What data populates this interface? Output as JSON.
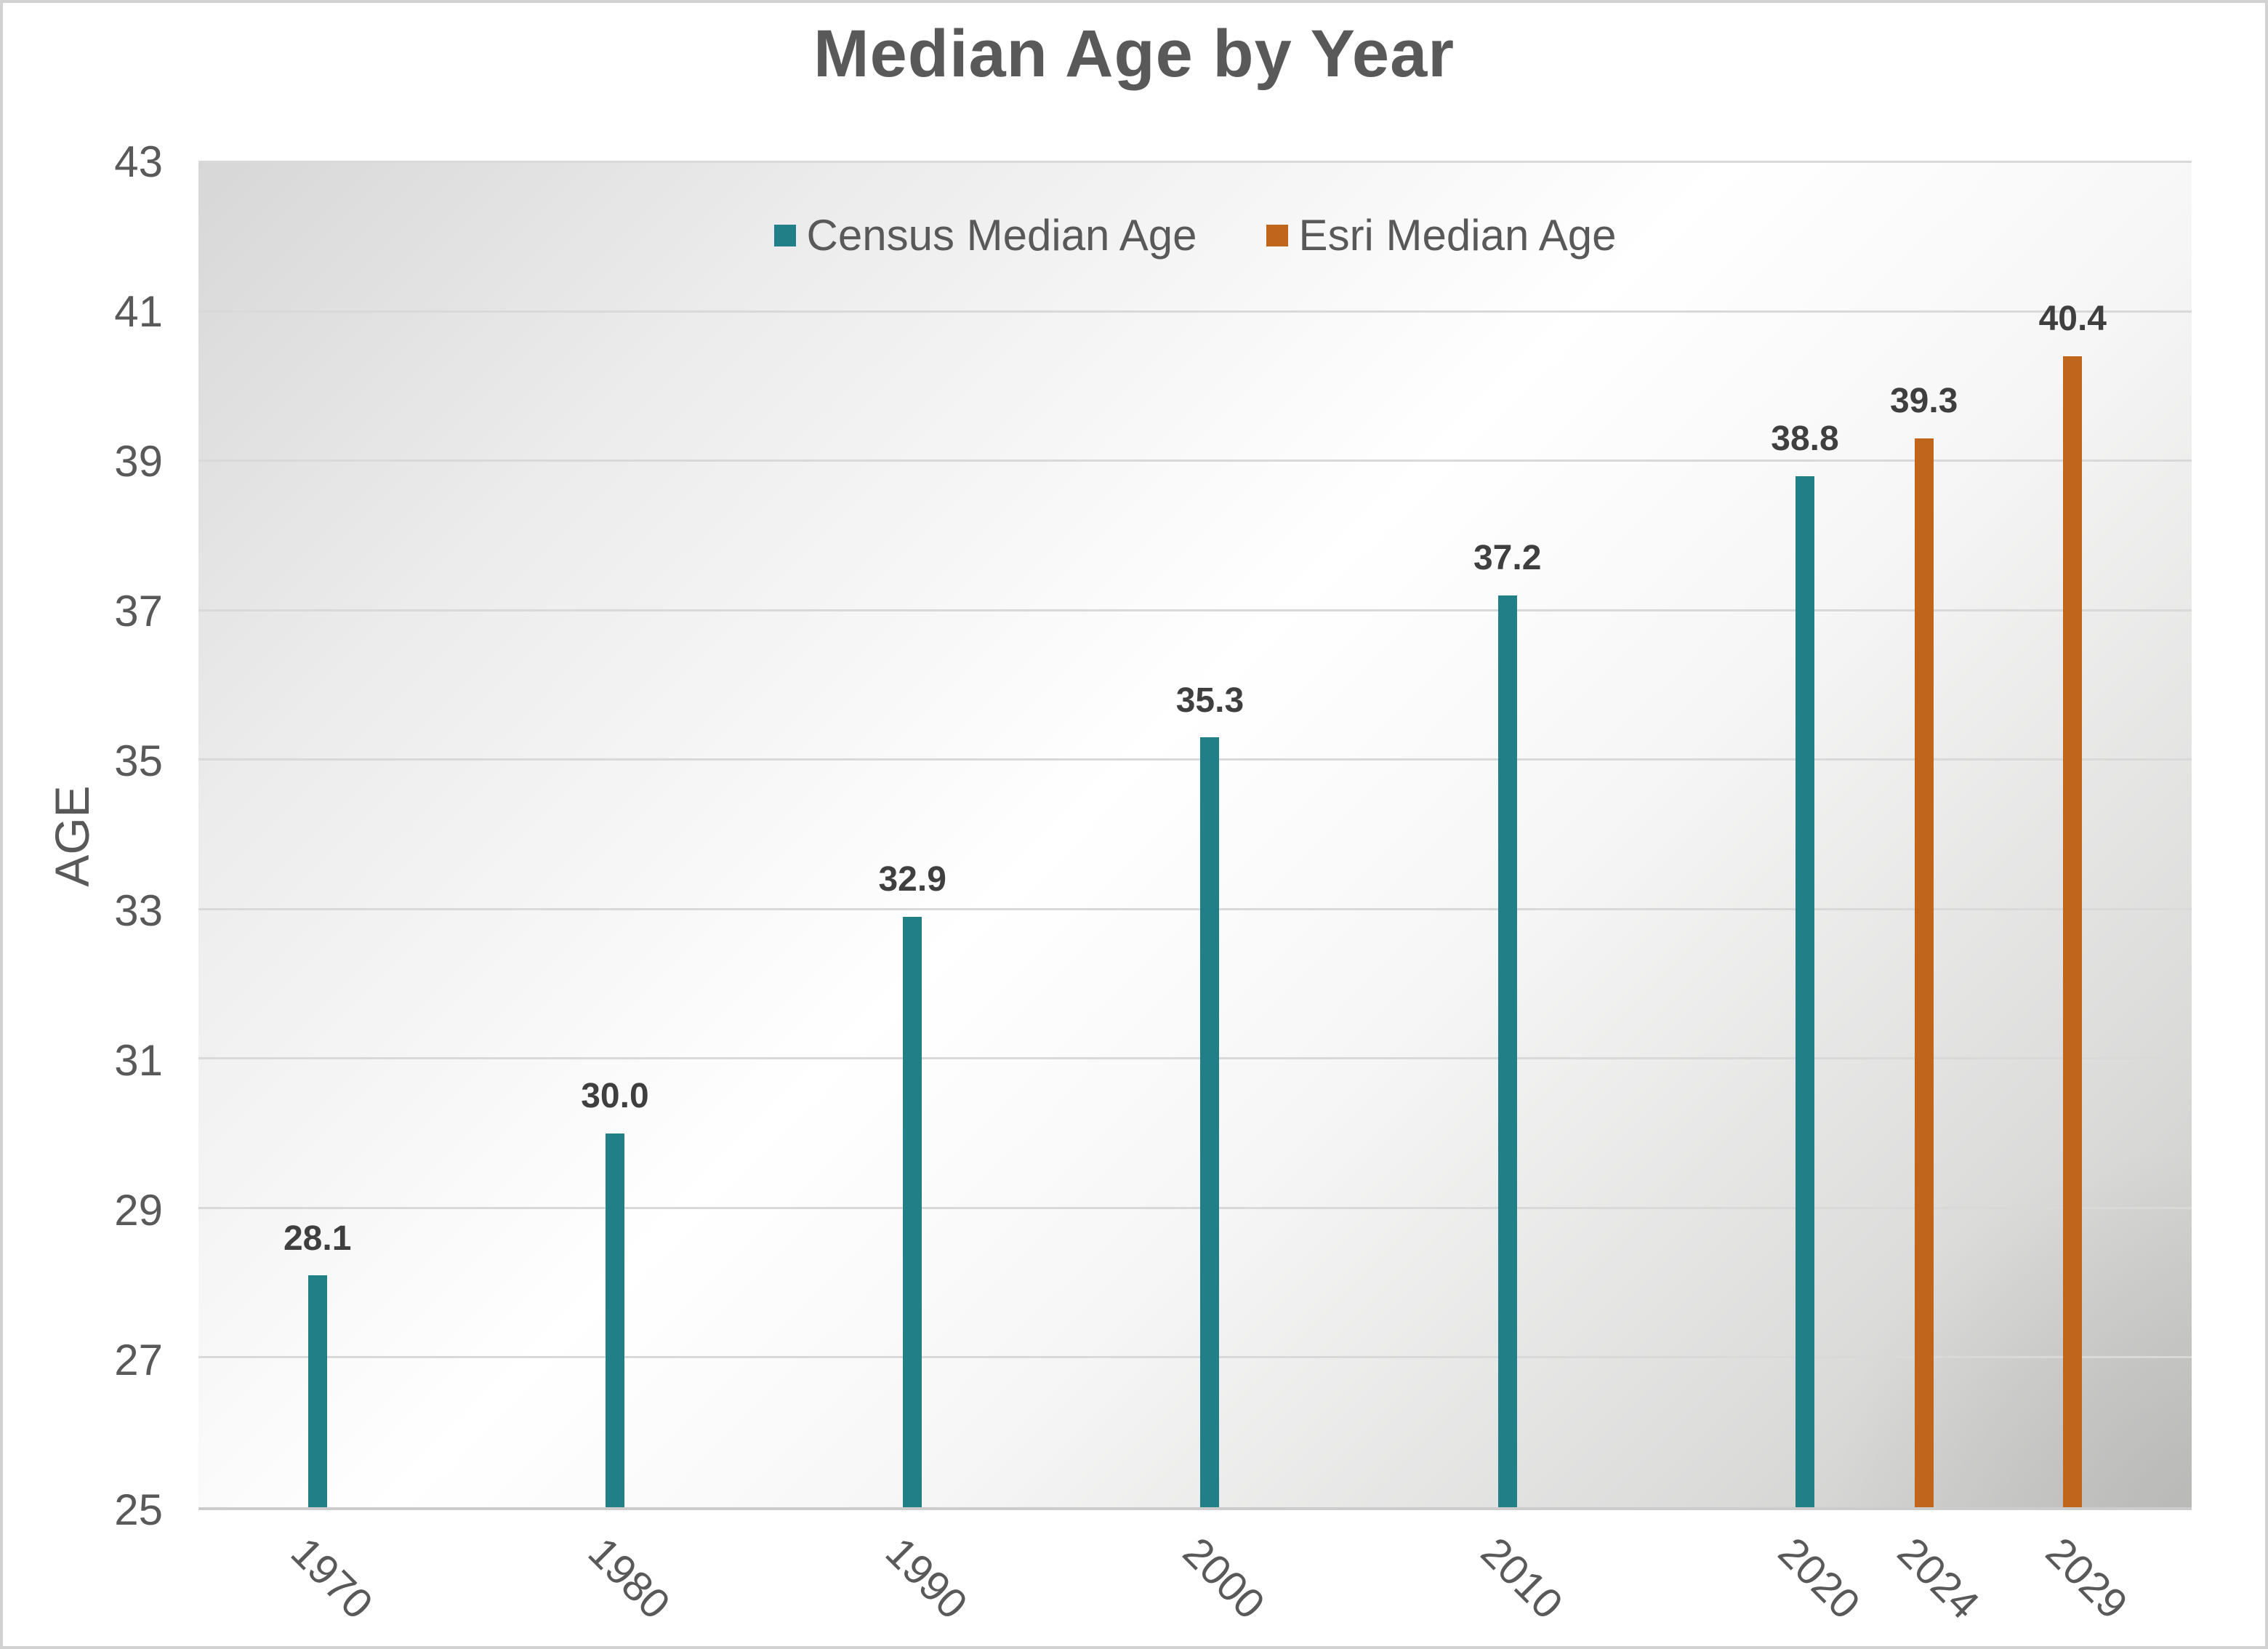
{
  "title": "Median Age by Year",
  "colors": {
    "census_teal": "#217F88",
    "esri_orange": "#BF651C",
    "title_text": "#595959",
    "axis_text": "#595959",
    "value_label_text": "#3F3F3F",
    "gridline": "#D9D9D9"
  },
  "chart_data": {
    "type": "bar",
    "title": "Median Age by Year",
    "xlabel": "",
    "ylabel": "AGE",
    "ylim": [
      25,
      43
    ],
    "ytick_step": 2,
    "yticks": [
      25,
      27,
      29,
      31,
      33,
      35,
      37,
      39,
      41,
      43
    ],
    "xticks": [
      "1970",
      "1980",
      "1990",
      "2000",
      "2010",
      "2020",
      "2024",
      "2029"
    ],
    "x_domain": [
      1966,
      2033
    ],
    "grid": true,
    "legend_position": "top-center-inside-plot",
    "series": [
      {
        "name": "Census Median Age",
        "color": "#217F88",
        "x": [
          1970,
          1980,
          1990,
          2000,
          2010,
          2020
        ],
        "values": [
          28.1,
          30.0,
          32.9,
          35.3,
          37.2,
          38.8
        ],
        "labels": [
          "28.1",
          "30.0",
          "32.9",
          "35.3",
          "37.2",
          "38.8"
        ]
      },
      {
        "name": "Esri Median Age",
        "color": "#BF651C",
        "x": [
          2024,
          2029
        ],
        "values": [
          39.3,
          40.4
        ],
        "labels": [
          "39.3",
          "40.4"
        ]
      }
    ]
  }
}
